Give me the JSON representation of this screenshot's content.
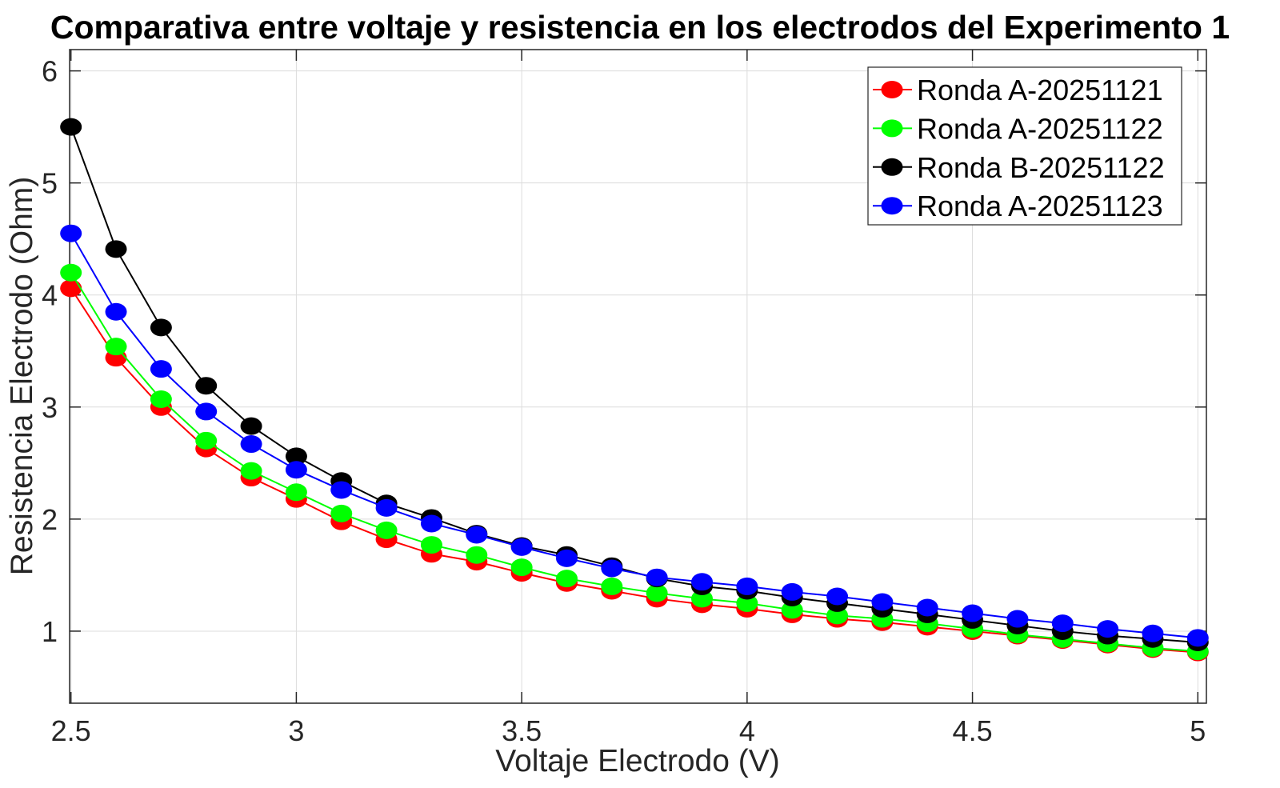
{
  "figure": {
    "background": "#ffffff"
  },
  "chart_data": {
    "type": "line",
    "title": "Comparativa entre voltaje y resistencia en los electrodos del Experimento 1",
    "xlabel": "Voltaje Electrodo (V)",
    "ylabel": "Resistencia Electrodo (Ohm)",
    "x": [
      2.5,
      2.6,
      2.7,
      2.8,
      2.9,
      3.0,
      3.1,
      3.2,
      3.3,
      3.4,
      3.5,
      3.6,
      3.7,
      3.8,
      3.9,
      4.0,
      4.1,
      4.2,
      4.3,
      4.4,
      4.5,
      4.6,
      4.7,
      4.8,
      4.9,
      5.0
    ],
    "series": [
      {
        "name": "Ronda A-20251121",
        "color": "#ff0000",
        "values": [
          4.06,
          3.44,
          3.0,
          2.63,
          2.37,
          2.18,
          1.98,
          1.82,
          1.69,
          1.62,
          1.52,
          1.43,
          1.36,
          1.29,
          1.24,
          1.2,
          1.15,
          1.11,
          1.08,
          1.04,
          1.0,
          0.96,
          0.92,
          0.88,
          0.84,
          0.81
        ]
      },
      {
        "name": "Ronda A-20251122",
        "color": "#00ff00",
        "values": [
          4.2,
          3.54,
          3.07,
          2.7,
          2.43,
          2.24,
          2.05,
          1.9,
          1.77,
          1.68,
          1.57,
          1.47,
          1.4,
          1.34,
          1.29,
          1.25,
          1.19,
          1.14,
          1.11,
          1.07,
          1.02,
          0.97,
          0.93,
          0.89,
          0.85,
          0.82
        ]
      },
      {
        "name": "Ronda B-20251122",
        "color": "#000000",
        "values": [
          5.5,
          4.41,
          3.71,
          3.19,
          2.83,
          2.56,
          2.34,
          2.14,
          2.01,
          1.87,
          1.76,
          1.68,
          1.58,
          1.47,
          1.4,
          1.36,
          1.3,
          1.25,
          1.2,
          1.15,
          1.1,
          1.05,
          1.0,
          0.96,
          0.93,
          0.9
        ]
      },
      {
        "name": "Ronda A-20251123",
        "color": "#0000ff",
        "values": [
          4.55,
          3.85,
          3.34,
          2.96,
          2.67,
          2.44,
          2.26,
          2.1,
          1.96,
          1.86,
          1.75,
          1.65,
          1.56,
          1.48,
          1.44,
          1.4,
          1.35,
          1.31,
          1.26,
          1.21,
          1.16,
          1.11,
          1.07,
          1.02,
          0.98,
          0.94
        ]
      }
    ],
    "x_ticks": [
      2.5,
      3,
      3.5,
      4,
      4.5,
      5
    ],
    "x_tick_labels": [
      "2.5",
      "3",
      "3.5",
      "4",
      "4.5",
      "5"
    ],
    "y_ticks": [
      1,
      2,
      3,
      4,
      5,
      6
    ],
    "y_tick_labels": [
      "1",
      "2",
      "3",
      "4",
      "5",
      "6"
    ],
    "xlim": [
      2.497,
      5.019
    ],
    "ylim": [
      0.357,
      6.19
    ],
    "grid": true,
    "legend": {
      "position": "top-right",
      "entries": [
        "Ronda A-20251121",
        "Ronda A-20251122",
        "Ronda B-20251122",
        "Ronda A-20251123"
      ]
    },
    "axis_color": "#262626",
    "grid_color": "#dcdcdc",
    "marker": "o"
  }
}
